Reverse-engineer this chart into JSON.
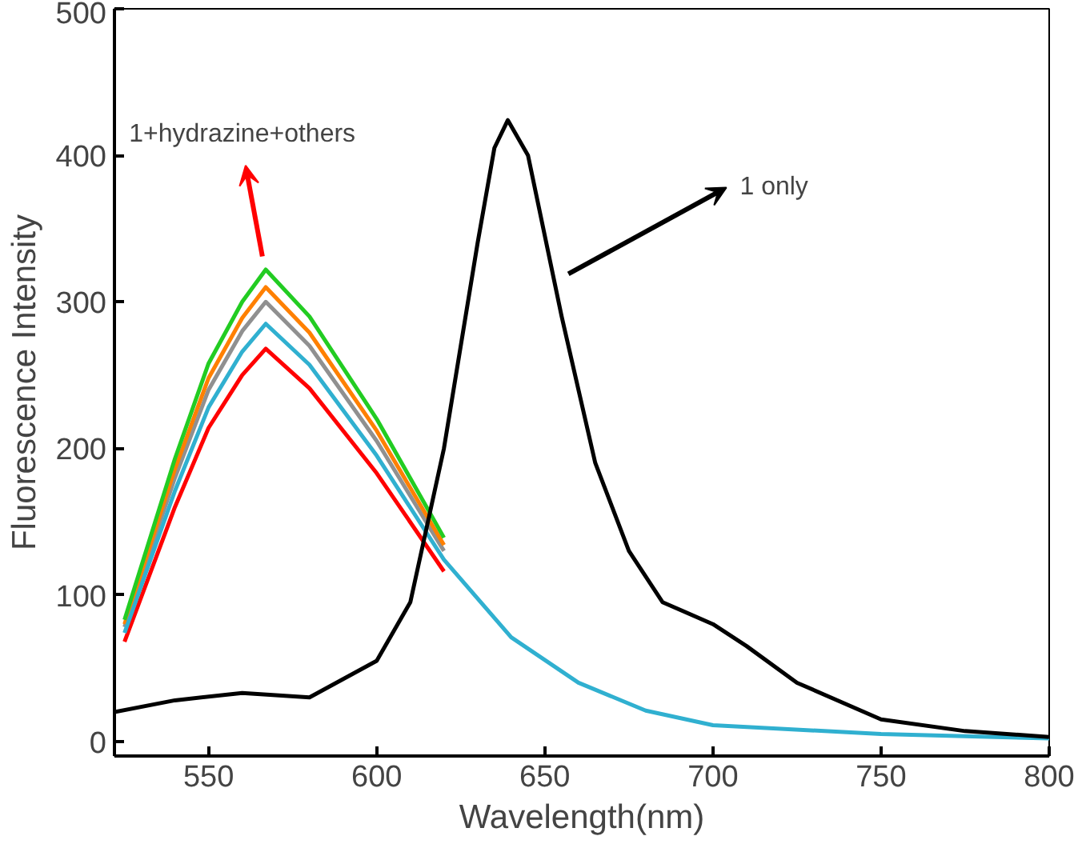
{
  "chart_data": {
    "type": "line",
    "xlabel": "Wavelength(nm)",
    "ylabel": "Fluorescence Intensity",
    "xlim": [
      522,
      800
    ],
    "ylim": [
      -10,
      500
    ],
    "xticks": [
      550,
      600,
      650,
      700,
      750,
      800
    ],
    "yticks": [
      0,
      100,
      200,
      300,
      400,
      500
    ],
    "grid": false,
    "marker": "none",
    "line_style": "solid",
    "x": [
      525,
      540,
      550,
      560,
      567,
      580,
      600,
      620,
      640,
      660,
      680,
      700,
      750,
      800
    ],
    "series": [
      {
        "color": "#ff0000",
        "values": [
          68,
          160,
          214,
          250,
          268,
          241,
          183,
          116,
          null,
          null,
          null,
          null,
          null,
          null
        ]
      },
      {
        "color": "#909090",
        "values": [
          78,
          180,
          240,
          280,
          300,
          270,
          205,
          130,
          null,
          null,
          null,
          null,
          null,
          null
        ]
      },
      {
        "color": "#ff8000",
        "values": [
          80,
          186,
          248,
          289,
          310,
          279,
          212,
          134,
          null,
          null,
          null,
          null,
          null,
          null
        ]
      },
      {
        "color": "#22cc22",
        "values": [
          83,
          193,
          258,
          300,
          322,
          290,
          220,
          139,
          null,
          null,
          null,
          null,
          null,
          null
        ]
      },
      {
        "color": "#30b0d0",
        "values": [
          74,
          171,
          228,
          266,
          285,
          257,
          195,
          124,
          71,
          40,
          21,
          11,
          5,
          2
        ]
      },
      {
        "color": "#000000",
        "x": [
          522,
          540,
          560,
          580,
          600,
          610,
          620,
          630,
          635,
          639,
          645,
          655,
          665,
          675,
          685,
          700,
          710,
          725,
          750,
          775,
          800
        ],
        "values": [
          20,
          28,
          33,
          30,
          55,
          95,
          200,
          340,
          405,
          424,
          400,
          290,
          190,
          130,
          95,
          80,
          65,
          40,
          15,
          7,
          3
        ]
      }
    ],
    "annotations": [
      "1+hydrazine+others",
      "1 only"
    ]
  }
}
